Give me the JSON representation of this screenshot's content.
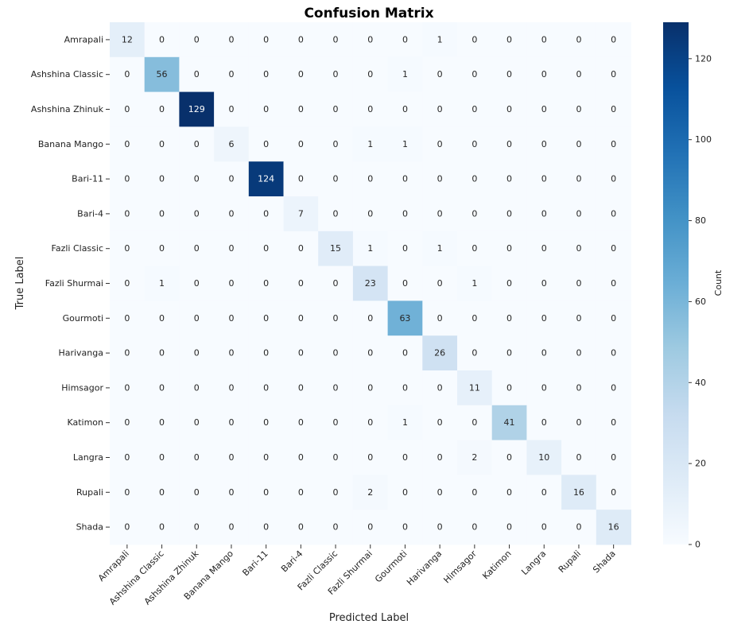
{
  "chart_data": {
    "type": "heatmap",
    "title": "Confusion Matrix",
    "xlabel": "Predicted Label",
    "ylabel": "True Label",
    "colorbar_label": "Count",
    "colormap": "Blues",
    "vmin": 0,
    "vmax": 129,
    "colorbar_ticks": [
      0,
      20,
      40,
      60,
      80,
      100,
      120
    ],
    "labels": [
      "Amrapali",
      "Ashshina Classic",
      "Ashshina Zhinuk",
      "Banana Mango",
      "Bari-11",
      "Bari-4",
      "Fazli Classic",
      "Fazli Shurmai",
      "Gourmoti",
      "Harivanga",
      "Himsagor",
      "Katimon",
      "Langra",
      "Rupali",
      "Shada"
    ],
    "matrix": [
      [
        12,
        0,
        0,
        0,
        0,
        0,
        0,
        0,
        0,
        1,
        0,
        0,
        0,
        0,
        0
      ],
      [
        0,
        56,
        0,
        0,
        0,
        0,
        0,
        0,
        1,
        0,
        0,
        0,
        0,
        0,
        0
      ],
      [
        0,
        0,
        129,
        0,
        0,
        0,
        0,
        0,
        0,
        0,
        0,
        0,
        0,
        0,
        0
      ],
      [
        0,
        0,
        0,
        6,
        0,
        0,
        0,
        1,
        1,
        0,
        0,
        0,
        0,
        0,
        0
      ],
      [
        0,
        0,
        0,
        0,
        124,
        0,
        0,
        0,
        0,
        0,
        0,
        0,
        0,
        0,
        0
      ],
      [
        0,
        0,
        0,
        0,
        0,
        7,
        0,
        0,
        0,
        0,
        0,
        0,
        0,
        0,
        0
      ],
      [
        0,
        0,
        0,
        0,
        0,
        0,
        15,
        1,
        0,
        1,
        0,
        0,
        0,
        0,
        0
      ],
      [
        0,
        1,
        0,
        0,
        0,
        0,
        0,
        23,
        0,
        0,
        1,
        0,
        0,
        0,
        0
      ],
      [
        0,
        0,
        0,
        0,
        0,
        0,
        0,
        0,
        63,
        0,
        0,
        0,
        0,
        0,
        0
      ],
      [
        0,
        0,
        0,
        0,
        0,
        0,
        0,
        0,
        0,
        26,
        0,
        0,
        0,
        0,
        0
      ],
      [
        0,
        0,
        0,
        0,
        0,
        0,
        0,
        0,
        0,
        0,
        11,
        0,
        0,
        0,
        0
      ],
      [
        0,
        0,
        0,
        0,
        0,
        0,
        0,
        0,
        1,
        0,
        0,
        41,
        0,
        0,
        0
      ],
      [
        0,
        0,
        0,
        0,
        0,
        0,
        0,
        0,
        0,
        0,
        2,
        0,
        10,
        0,
        0
      ],
      [
        0,
        0,
        0,
        0,
        0,
        0,
        0,
        2,
        0,
        0,
        0,
        0,
        0,
        16,
        0
      ],
      [
        0,
        0,
        0,
        0,
        0,
        0,
        0,
        0,
        0,
        0,
        0,
        0,
        0,
        0,
        16
      ]
    ]
  }
}
